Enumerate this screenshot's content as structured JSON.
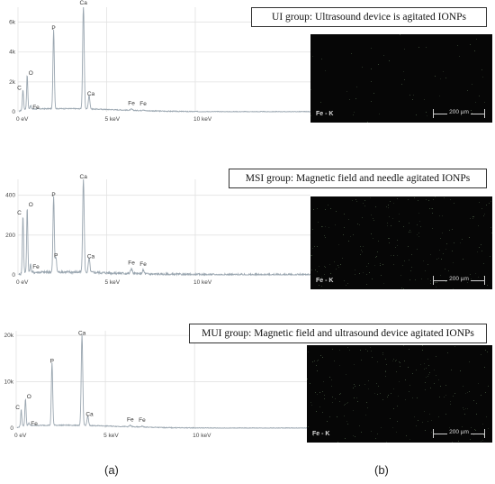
{
  "chart_data": [
    {
      "type": "line",
      "group_label": "UI group: Ultrasound device is agitated IONPs",
      "xlabel": "",
      "ylabel": "",
      "x_unit": "keV",
      "xlim": [
        0,
        16.5
      ],
      "ylim": [
        0,
        7000
      ],
      "x_tick_labels": [
        "0 eV",
        "5 keV",
        "10 keV"
      ],
      "x_ticks": [
        0,
        5,
        10
      ],
      "y_tick_labels": [
        "0",
        "2k",
        "4k",
        "6k"
      ],
      "y_ticks": [
        0,
        2000,
        4000,
        6000
      ],
      "peaks": [
        {
          "label": "C",
          "energy": 0.28,
          "counts": 1300
        },
        {
          "label": "O",
          "energy": 0.52,
          "counts": 2300
        },
        {
          "label": "Fe",
          "energy": 0.71,
          "counts": 250
        },
        {
          "label": "P",
          "energy": 2.01,
          "counts": 5300
        },
        {
          "label": "Ca",
          "energy": 3.69,
          "counts": 7000
        },
        {
          "label": "Ca",
          "energy": 4.01,
          "counts": 900
        },
        {
          "label": "Fe",
          "energy": 6.4,
          "counts": 80
        },
        {
          "label": "Fe",
          "energy": 7.06,
          "counts": 60
        }
      ],
      "map": {
        "element_label": "Fe - K",
        "scale_label": "200 µm"
      }
    },
    {
      "type": "line",
      "group_label": "MSI group: Magnetic field and needle agitated IONPs",
      "xlabel": "",
      "ylabel": "",
      "x_unit": "keV",
      "xlim": [
        0,
        16.5
      ],
      "ylim": [
        0,
        480
      ],
      "x_tick_labels": [
        "0 eV",
        "5 keV",
        "10 keV"
      ],
      "x_ticks": [
        0,
        5,
        10
      ],
      "y_tick_labels": [
        "0",
        "200",
        "400"
      ],
      "y_ticks": [
        0,
        200,
        400
      ],
      "peaks": [
        {
          "label": "C",
          "energy": 0.28,
          "counts": 290
        },
        {
          "label": "O",
          "energy": 0.52,
          "counts": 330
        },
        {
          "label": "Fe",
          "energy": 0.71,
          "counts": 40
        },
        {
          "label": "P",
          "energy": 2.01,
          "counts": 380
        },
        {
          "label": "P",
          "energy": 2.14,
          "counts": 75
        },
        {
          "label": "Ca",
          "energy": 3.69,
          "counts": 470
        },
        {
          "label": "Ca",
          "energy": 4.01,
          "counts": 70
        },
        {
          "label": "Fe",
          "energy": 6.4,
          "counts": 25
        },
        {
          "label": "Fe",
          "energy": 7.06,
          "counts": 18
        }
      ],
      "map": {
        "element_label": "Fe - K",
        "scale_label": "200 µm"
      }
    },
    {
      "type": "line",
      "group_label": "MUI group: Magnetic field and ultrasound device agitated IONPs",
      "xlabel": "",
      "ylabel": "",
      "x_unit": "keV",
      "xlim": [
        0,
        16.5
      ],
      "ylim": [
        0,
        21000
      ],
      "x_tick_labels": [
        "0 eV",
        "5 keV",
        "10 keV"
      ],
      "x_ticks": [
        0,
        5,
        10
      ],
      "y_tick_labels": [
        "0",
        "10k",
        "20k"
      ],
      "y_ticks": [
        0,
        10000,
        20000
      ],
      "peaks": [
        {
          "label": "C",
          "energy": 0.28,
          "counts": 3500
        },
        {
          "label": "O",
          "energy": 0.52,
          "counts": 5800
        },
        {
          "label": "Fe",
          "energy": 0.71,
          "counts": 600
        },
        {
          "label": "P",
          "energy": 2.01,
          "counts": 13500
        },
        {
          "label": "Ca",
          "energy": 3.69,
          "counts": 19500
        },
        {
          "label": "Ca",
          "energy": 4.01,
          "counts": 2000
        },
        {
          "label": "Fe",
          "energy": 6.4,
          "counts": 300
        },
        {
          "label": "Fe",
          "energy": 7.06,
          "counts": 200
        }
      ],
      "map": {
        "element_label": "Fe - K",
        "scale_label": "200 µm"
      }
    }
  ],
  "labels": {
    "a": "(a)",
    "b": "(b)"
  },
  "colors": {
    "spectrum": "#9aa6b0",
    "map_background": "#060606",
    "grid": "#e2e2e2"
  }
}
